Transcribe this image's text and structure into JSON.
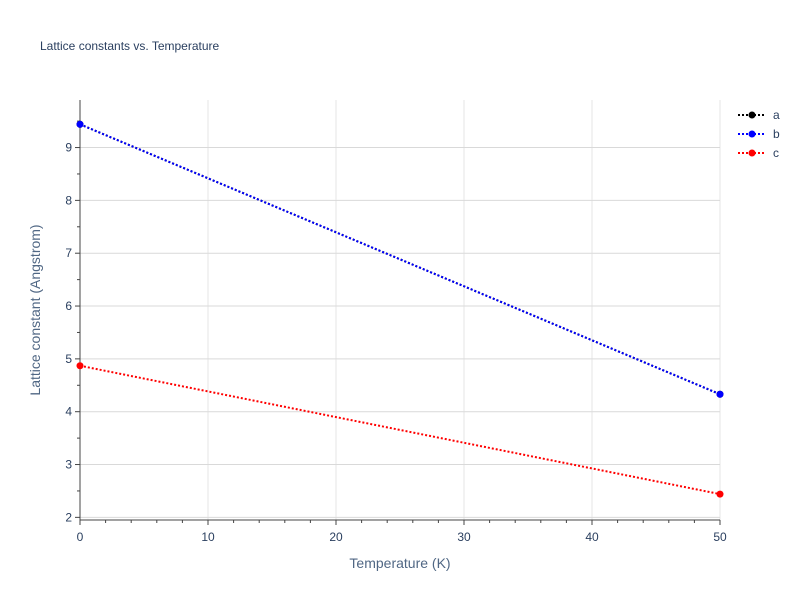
{
  "chart_data": {
    "type": "line",
    "title": "Lattice constants vs. Temperature",
    "xlabel": "Temperature (K)",
    "ylabel": "Lattice constant (Angstrom)",
    "xlim": [
      0,
      50
    ],
    "ylim": [
      1.95,
      9.9
    ],
    "x_ticks": [
      0,
      10,
      20,
      30,
      40,
      50
    ],
    "y_ticks": [
      2,
      3,
      4,
      5,
      6,
      7,
      8,
      9
    ],
    "x_minor_step": 2,
    "y_minor_step": 0.5,
    "grid": true,
    "legend_position": "top-right",
    "line_style": "dotted",
    "series": [
      {
        "name": "a",
        "color": "#000000",
        "x": [
          0,
          50
        ],
        "y": [
          9.44,
          4.33
        ]
      },
      {
        "name": "b",
        "color": "#0000ff",
        "x": [
          0,
          50
        ],
        "y": [
          9.44,
          4.33
        ]
      },
      {
        "name": "c",
        "color": "#ff0000",
        "x": [
          0,
          50
        ],
        "y": [
          4.87,
          2.44
        ]
      }
    ]
  }
}
